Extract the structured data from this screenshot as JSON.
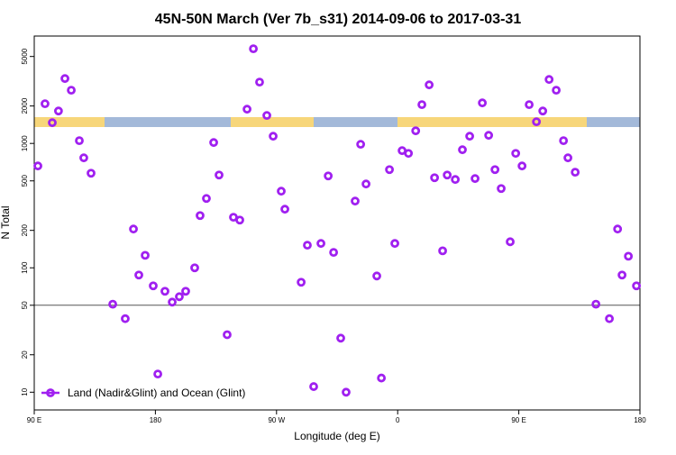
{
  "chart_data": {
    "type": "scatter",
    "title": "45N-50N March (Ver 7b_s31)   2014-09-06 to 2017-03-31",
    "xlabel": "Longitude (deg E)",
    "ylabel": "N Total",
    "log_y": true,
    "hline": 50,
    "xlim": [
      90,
      540
    ],
    "xticks": [
      {
        "value": 90,
        "label": "90 E"
      },
      180,
      {
        "value": 270,
        "label": "90 W"
      },
      {
        "value": 360,
        "label": "0"
      },
      {
        "value": 450,
        "label": "90 E"
      },
      {
        "value": 540,
        "label": "180"
      }
    ],
    "ylim": [
      7.2,
      7300
    ],
    "yticks": [
      10,
      20,
      50,
      100,
      200,
      500,
      1000,
      2000,
      5000
    ],
    "legend": "bottom-left",
    "series": [
      {
        "name": "Land (Nadir&Glint) and Ocean (Glint)",
        "color": "#a020f0",
        "x": [
          92.7,
          98,
          103.4,
          108,
          112.8,
          117.5,
          123.5,
          126.8,
          132.2,
          148.3,
          157.6,
          163.7,
          167.7,
          172.4,
          178.4,
          181.8,
          187.1,
          192.5,
          197.8,
          202.5,
          209.2,
          213.2,
          217.9,
          223.3,
          227.3,
          233.3,
          238,
          242.7,
          248.1,
          252.8,
          257.4,
          262.8,
          267.5,
          273.5,
          276.2,
          288.3,
          292.9,
          297.6,
          303,
          308.4,
          312.4,
          317.7,
          321.7,
          328.4,
          332.5,
          336.5,
          344.5,
          347.9,
          353.9,
          357.9,
          363.3,
          368,
          373.4,
          378,
          383.4,
          387.4,
          393.4,
          396.8,
          402.8,
          408.1,
          413.5,
          417.5,
          422.9,
          427.6,
          432.3,
          436.9,
          443.6,
          447.7,
          452.4,
          457.7,
          463.1,
          467.8,
          472.5,
          477.8,
          483.2,
          486.5,
          491.9,
          507.3,
          517.3,
          523.4,
          526.7,
          531.4,
          537.4
        ],
        "values": [
          659,
          2084,
          1468,
          1823,
          3324,
          2677,
          1052,
          766,
          576,
          51,
          39,
          205,
          87.5,
          126,
          71.6,
          14,
          64.8,
          53,
          58.6,
          64.8,
          100,
          263,
          361,
          1017,
          557,
          29,
          255,
          242,
          1885,
          5770,
          3111,
          1678,
          1143,
          413,
          296,
          76.6,
          152,
          11.1,
          157,
          548,
          133,
          27.2,
          10,
          344,
          984,
          472,
          86,
          13,
          616,
          157,
          875,
          832,
          1263,
          2050,
          2958,
          530,
          137,
          557,
          513,
          890,
          1143,
          522,
          2118,
          1162,
          616,
          434,
          162,
          832,
          659,
          2050,
          1493,
          1823,
          3267,
          2677,
          1052,
          766,
          587,
          51,
          39,
          205,
          87.5,
          124,
          71.6
        ]
      }
    ]
  }
}
